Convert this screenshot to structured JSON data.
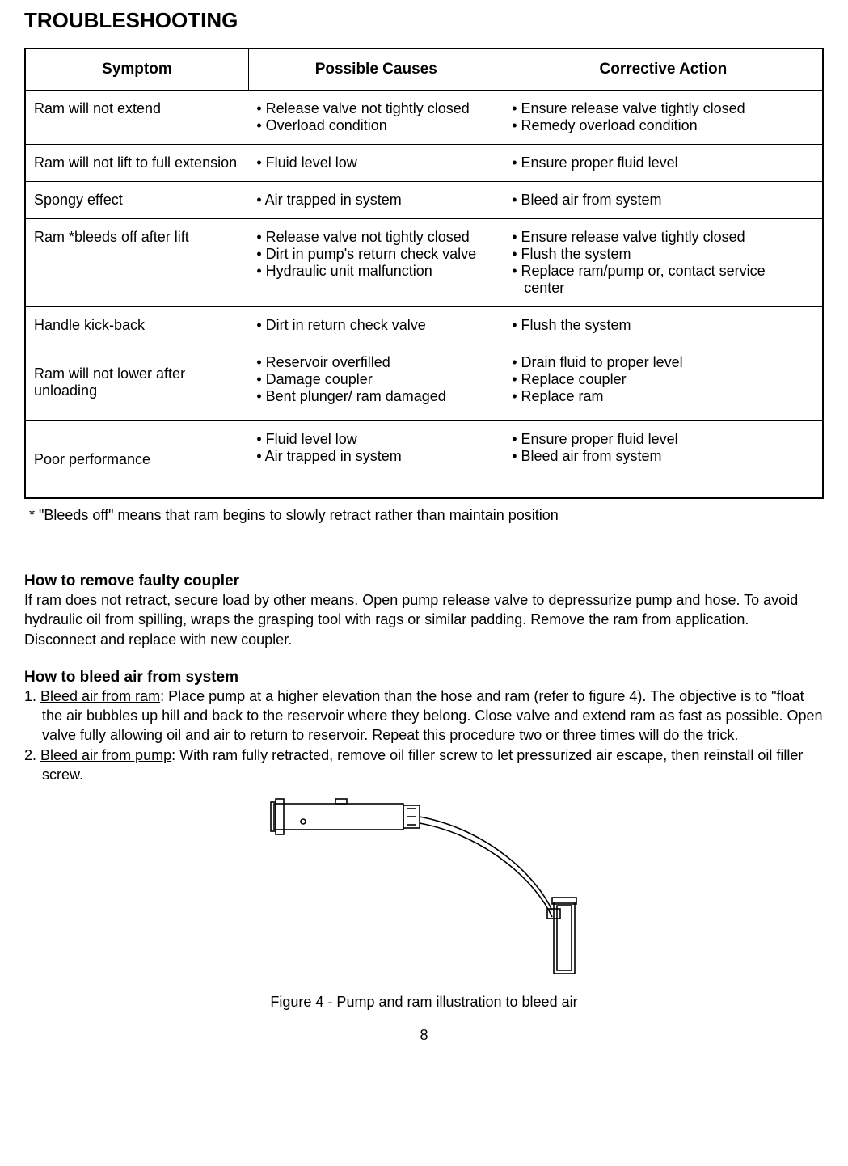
{
  "title": "TROUBLESHOOTING",
  "table": {
    "headers": {
      "symptom": "Symptom",
      "causes": "Possible Causes",
      "action": "Corrective Action"
    },
    "rows": [
      {
        "symptom": "Ram will not extend",
        "causes": "• Release valve not tightly closed\n• Overload condition",
        "action": "• Ensure release valve tightly closed\n• Remedy overload condition"
      },
      {
        "symptom": "Ram will not lift to full extension",
        "causes": "• Fluid level low",
        "action": "• Ensure proper fluid level"
      },
      {
        "symptom": "Spongy effect",
        "causes": "• Air trapped in system",
        "action": "• Bleed air from system"
      },
      {
        "symptom": "Ram *bleeds off after lift",
        "causes": "• Release valve not tightly closed\n• Dirt in pump's return check valve\n• Hydraulic unit malfunction",
        "action": "• Ensure release valve tightly closed\n• Flush the system\n• Replace ram/pump or, contact service\n   center"
      },
      {
        "symptom": "Handle kick-back",
        "causes": "• Dirt in return check valve",
        "action": "• Flush the system"
      },
      {
        "symptom": "Ram will not lower after unloading",
        "causes": "• Reservoir overfilled\n• Damage coupler\n• Bent plunger/ ram damaged",
        "action": "• Drain fluid to proper level\n• Replace coupler\n• Replace ram",
        "symptom_vcenter": true
      },
      {
        "symptom": "Poor performance",
        "causes": "• Fluid level low\n• Air trapped in system",
        "action": "• Ensure proper fluid level\n• Bleed air from system",
        "symptom_vcenter": true
      }
    ]
  },
  "footnote": " *  \"Bleeds off\" means that ram begins to slowly retract rather than maintain position",
  "section1_heading": "How to remove faulty coupler",
  "section1_body": "If ram does not retract, secure load by other means. Open pump release valve to depressurize pump and hose. To avoid hydraulic oil from spilling, wraps the grasping tool with rags or similar padding. Remove the ram from application. Disconnect and replace with new coupler.",
  "section2_heading": "How to bleed air from system",
  "step1_prefix": "1. ",
  "step1_underline": "Bleed air from ram",
  "step1_rest": ": Place pump at a higher elevation than the hose and ram (refer to figure 4). The objective is to \"float the air bubbles up hill and back to the reservoir where they belong. Close valve and extend ram as fast as possible. Open valve fully allowing oil and air to return to reservoir. Repeat this procedure two or three times will do the trick.",
  "step2_prefix": "2. ",
  "step2_underline": "Bleed air from pump",
  "step2_rest": ": With ram fully retracted, remove oil filler screw to let pressurized air escape, then reinstall oil filler screw.",
  "figure_caption": "Figure 4 - Pump and ram illustration to bleed air",
  "page_number": "8",
  "colors": {
    "text": "#000000",
    "bg": "#ffffff",
    "border": "#000000"
  }
}
